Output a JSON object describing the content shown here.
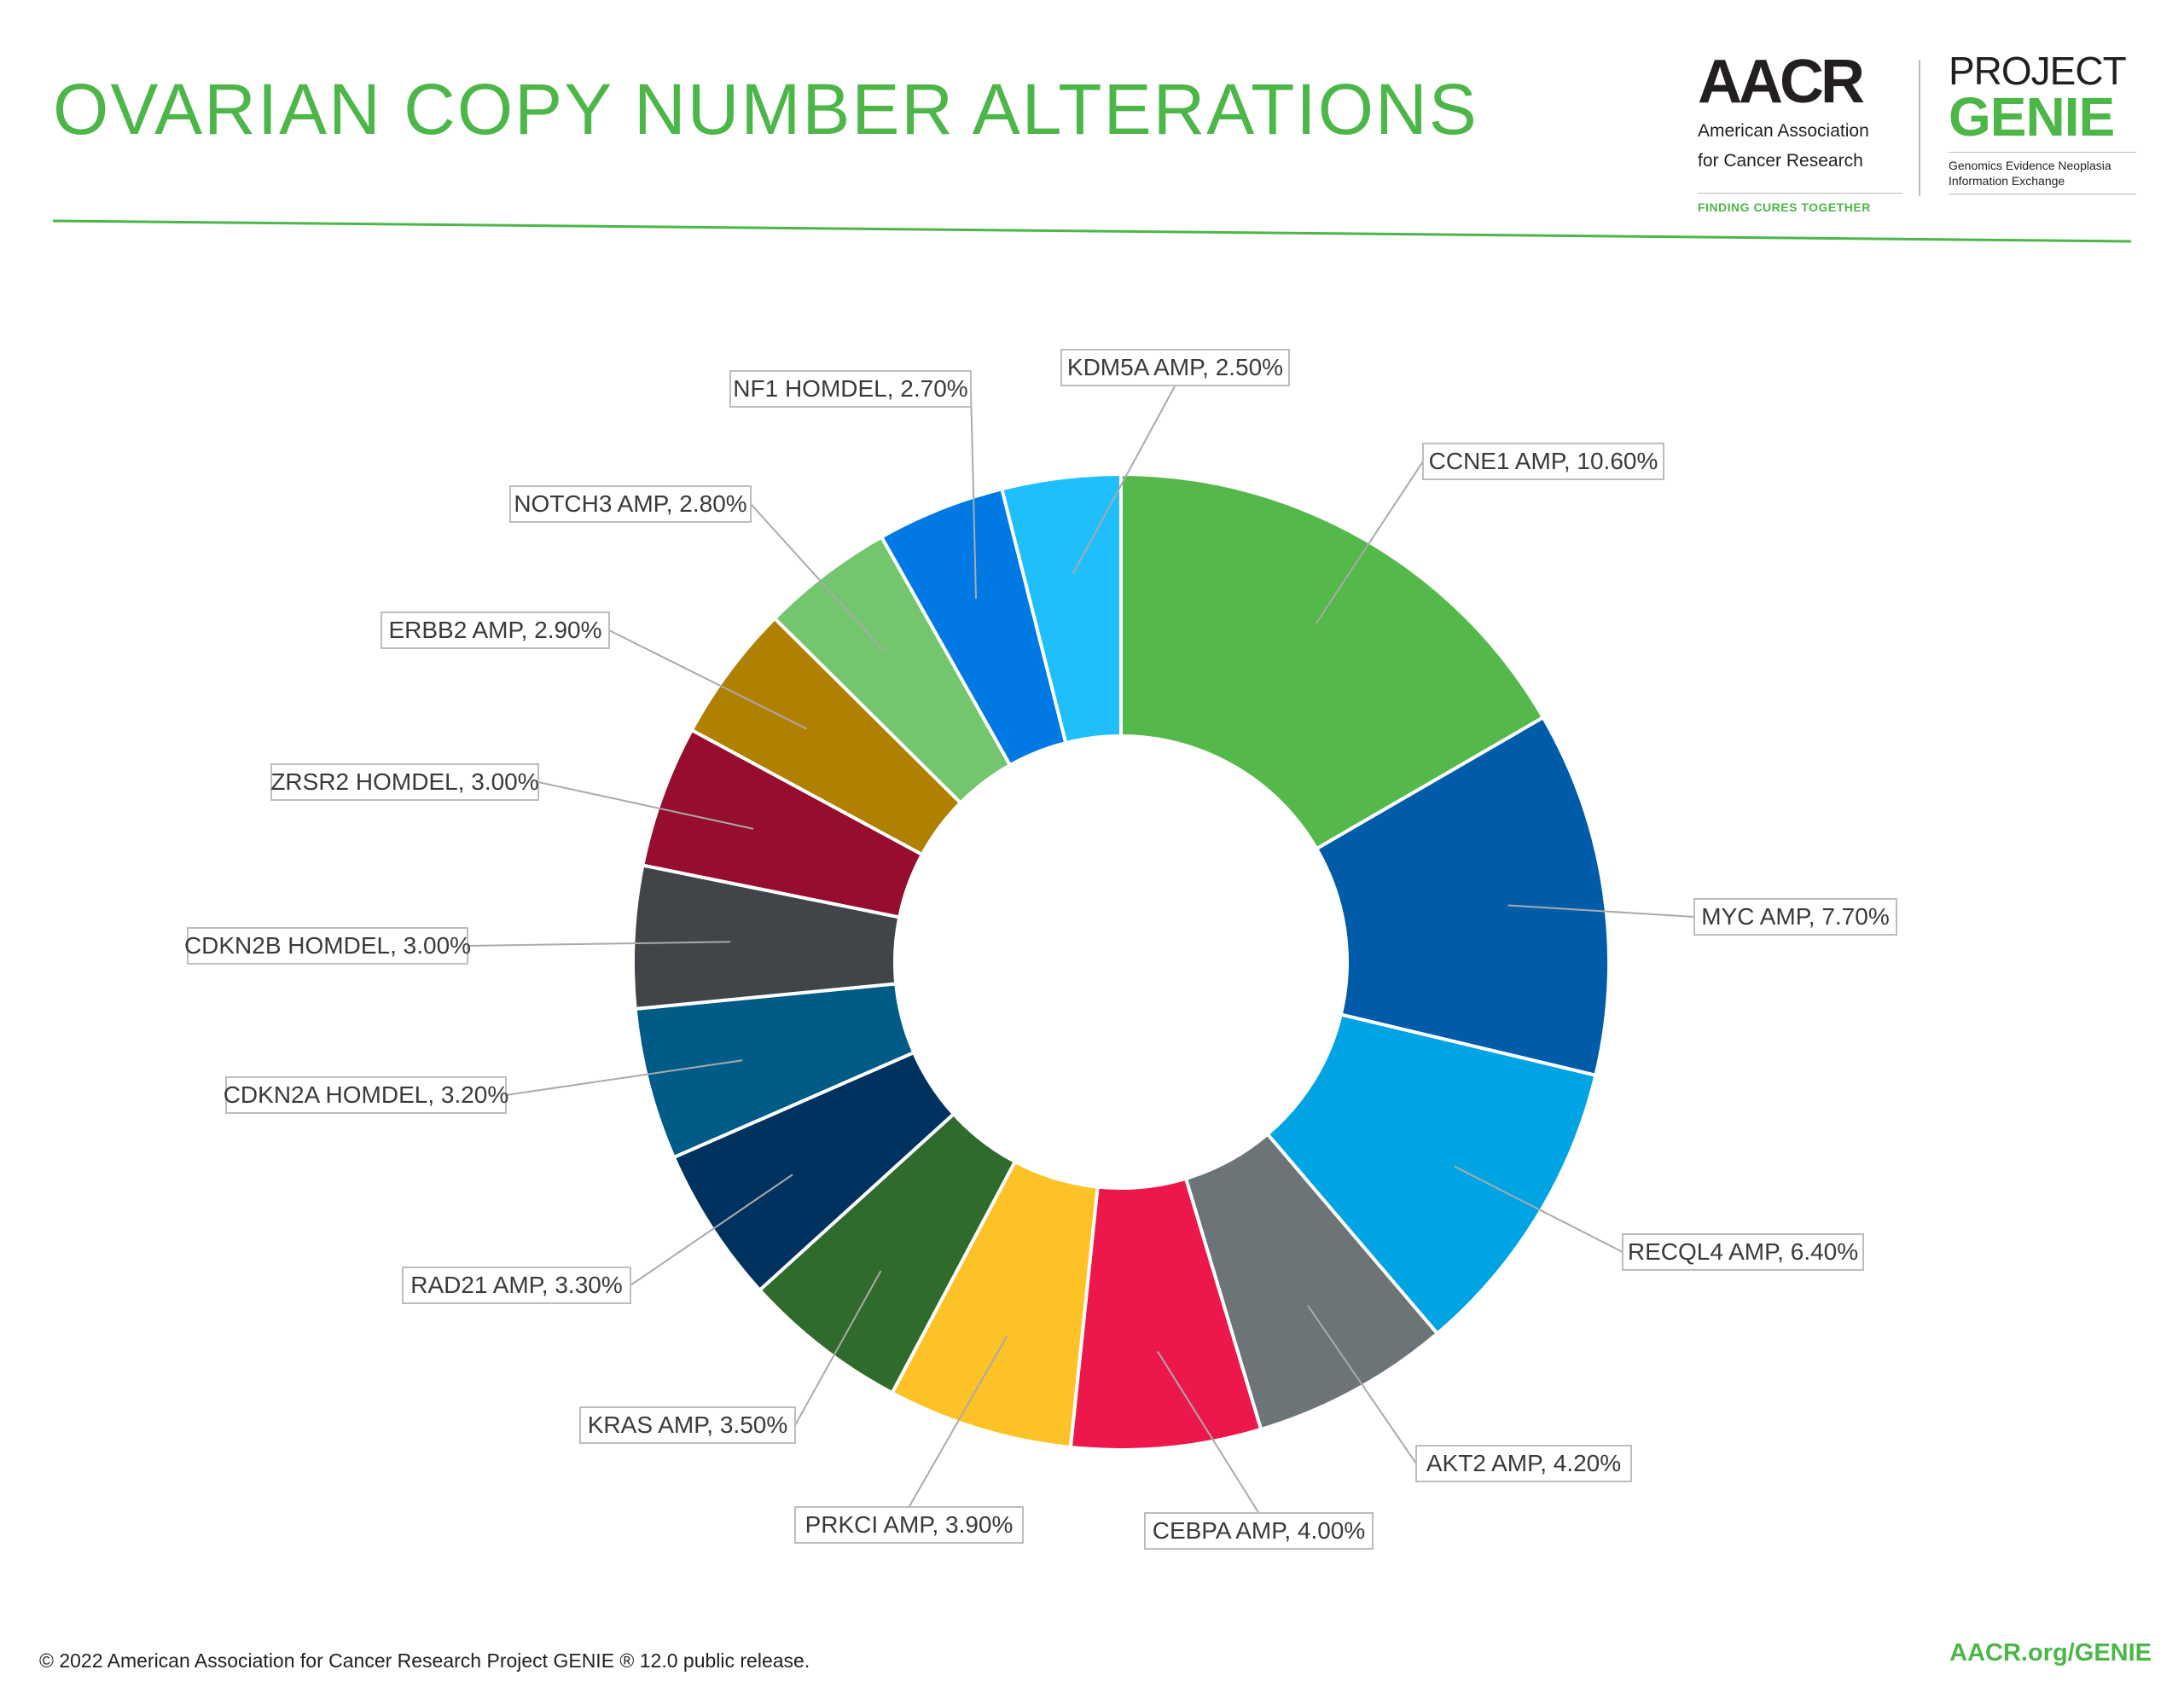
{
  "header": {
    "title": "OVARIAN COPY NUMBER ALTERATIONS"
  },
  "logos": {
    "aacr": {
      "mark": "AACR",
      "line1": "American Association",
      "line2": "for Cancer Research",
      "tagline": "FINDING CURES TOGETHER"
    },
    "genie": {
      "line1": "PROJECT",
      "line2": "GENIE",
      "line3": "Genomics Evidence Neoplasia",
      "line4": "Information Exchange"
    }
  },
  "footer": {
    "copyright": "© 2022 American Association for Cancer Research Project GENIE ® 12.0 public release.",
    "link": "AACR.org/GENIE"
  },
  "chart_data": {
    "type": "pie",
    "variant": "donut",
    "title": "OVARIAN COPY NUMBER ALTERATIONS",
    "unit": "%",
    "slices": [
      {
        "label": "CCNE1 AMP",
        "value": 10.6,
        "text": "CCNE1 AMP, 10.60%",
        "color": "#55b84a"
      },
      {
        "label": "MYC AMP",
        "value": 7.7,
        "text": "MYC AMP, 7.70%",
        "color": "#005ba9"
      },
      {
        "label": "RECQL4 AMP",
        "value": 6.4,
        "text": "RECQL4 AMP, 6.40%",
        "color": "#00a4e3"
      },
      {
        "label": "AKT2 AMP",
        "value": 4.2,
        "text": "AKT2 AMP, 4.20%",
        "color": "#6d7478"
      },
      {
        "label": "CEBPA AMP",
        "value": 4.0,
        "text": "CEBPA AMP, 4.00%",
        "color": "#ed174b"
      },
      {
        "label": "PRKCI AMP",
        "value": 3.9,
        "text": "PRKCI AMP, 3.90%",
        "color": "#fdc226"
      },
      {
        "label": "KRAS AMP",
        "value": 3.5,
        "text": "KRAS AMP, 3.50%",
        "color": "#2f6b2c"
      },
      {
        "label": "RAD21 AMP",
        "value": 3.3,
        "text": "RAD21 AMP, 3.30%",
        "color": "#003260"
      },
      {
        "label": "CDKN2A HOMDEL",
        "value": 3.2,
        "text": "CDKN2A HOMDEL, 3.20%",
        "color": "#005b86"
      },
      {
        "label": "CDKN2B HOMDEL",
        "value": 3.0,
        "text": "CDKN2B HOMDEL, 3.00%",
        "color": "#414448"
      },
      {
        "label": "ZRSR2 HOMDEL",
        "value": 3.0,
        "text": "ZRSR2 HOMDEL, 3.00%",
        "color": "#960d2d"
      },
      {
        "label": "ERBB2 AMP",
        "value": 2.9,
        "text": "ERBB2 AMP, 2.90%",
        "color": "#b08100"
      },
      {
        "label": "NOTCH3 AMP",
        "value": 2.8,
        "text": "NOTCH3 AMP, 2.80%",
        "color": "#73c66d"
      },
      {
        "label": "NF1 HOMDEL",
        "value": 2.7,
        "text": "NF1 HOMDEL, 2.70%",
        "color": "#0079e4"
      },
      {
        "label": "KDM5A AMP",
        "value": 2.5,
        "text": "KDM5A AMP, 2.50%",
        "color": "#1ebffa"
      }
    ]
  }
}
